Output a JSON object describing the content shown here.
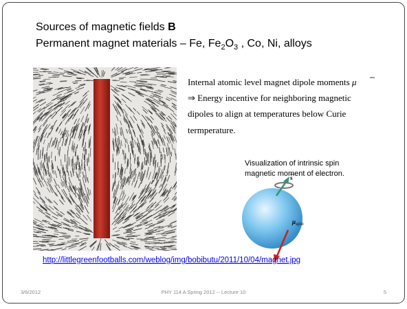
{
  "title": {
    "line1": "Sources of magnetic fields ",
    "line1_bold": "B",
    "line2": [
      "Permanent magnet materials – Fe, Fe",
      "2",
      "O",
      "3",
      " , Co, Ni, alloys"
    ]
  },
  "body": {
    "lines": [
      "Internal atomic level magnet dipole moments ",
      "⇒ Energy incentive for neighboring magnetic",
      "dipoles to align at temperatures below Curie",
      "termperature."
    ],
    "symbol": "μ"
  },
  "caption": {
    "lines": [
      "Visualization of intrinsic spin",
      "magnetic moment of electron."
    ]
  },
  "figure": {
    "spin_label": "s",
    "moment_label": "μ",
    "moment_subscript": "spin"
  },
  "link": "http://littlegreenfootballs.com/weblog/img/bobibutu/2011/10/04/magnet.jpg",
  "footer": {
    "date": "3/6/2012",
    "course": "PHY 114 A  Spring 2012 -- Lecture 10",
    "page": "5"
  }
}
